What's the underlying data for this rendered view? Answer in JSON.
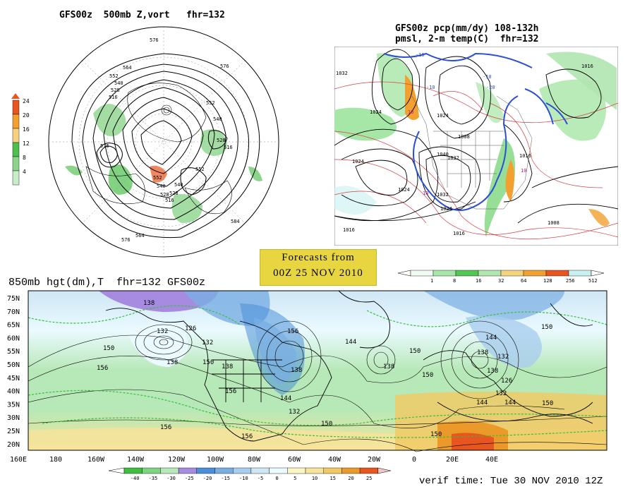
{
  "polar_map": {
    "title": "GFS00z  500mb Z,vort   fhr=132",
    "legend_values": [
      "24",
      "20",
      "16",
      "12",
      "8",
      "4"
    ],
    "legend_colors": [
      "#e8551e",
      "#f2a030",
      "#f5d27c",
      "#4cbf4c",
      "#8cd48c",
      "#c8ecc8"
    ],
    "contour_labels": [
      "576",
      "564",
      "552",
      "540",
      "528",
      "516",
      "576",
      "552",
      "540",
      "528",
      "516",
      "576",
      "584",
      "552",
      "540",
      "528",
      "516",
      "564",
      "576",
      "552",
      "540",
      "528"
    ]
  },
  "na_map": {
    "title_line1": "GFS00z pcp(mm/dy) 108-132h",
    "title_line2": "pmsl, 2-m temp(C)  fhr=132",
    "pressure_labels": [
      "1032",
      "1024",
      "1024",
      "1024",
      "1040",
      "1032",
      "1024",
      "1008",
      "1016",
      "1016",
      "1016",
      "1008",
      "1016",
      "1032",
      "1024"
    ],
    "temp_labels": [
      "-10",
      "-10",
      "10",
      "10",
      "10",
      "-10",
      "-20"
    ],
    "legend_values": [
      "1",
      "8",
      "16",
      "32",
      "64",
      "128",
      "256",
      "512"
    ],
    "legend_colors": [
      "#f0faf0",
      "#a6e6a6",
      "#52c852",
      "#b0e6b0",
      "#f5d27c",
      "#f2a030",
      "#e8551e",
      "#c8f0f0"
    ]
  },
  "forecast_box": {
    "line1": "Forecasts from",
    "line2": "00Z 25 NOV 2010"
  },
  "world_map": {
    "title": "850mb hgt(dm),T  fhr=132 GFS00z",
    "lat_labels": [
      "75N",
      "70N",
      "65N",
      "60N",
      "55N",
      "50N",
      "45N",
      "40N",
      "35N",
      "30N",
      "25N",
      "20N"
    ],
    "lon_labels": [
      "160E",
      "180",
      "160W",
      "140W",
      "120W",
      "100W",
      "80W",
      "60W",
      "40W",
      "20W",
      "0",
      "20E",
      "40E"
    ],
    "height_labels": [
      "138",
      "132",
      "126",
      "132",
      "138",
      "150",
      "156",
      "150",
      "138",
      "132",
      "144",
      "150",
      "156",
      "144",
      "138",
      "150",
      "156",
      "150",
      "156",
      "156",
      "150",
      "144",
      "138",
      "132",
      "138",
      "126",
      "150",
      "144",
      "138",
      "144",
      "150",
      "132"
    ],
    "temp_legend_values": [
      "-40",
      "-35",
      "-30",
      "-25",
      "-20",
      "-15",
      "-10",
      "-5",
      "0",
      "5",
      "10",
      "15",
      "20",
      "25"
    ],
    "temp_legend_colors": [
      "#3fbf3f",
      "#7fd47f",
      "#b7e8b7",
      "#a78be0",
      "#4a8fd9",
      "#79aee3",
      "#a9cdee",
      "#cfe6f5",
      "#eafaff",
      "#fbf7c5",
      "#f6e49a",
      "#f2c862",
      "#eb9a2a",
      "#e8551e"
    ]
  },
  "verif_time": "verif time: Tue 30 NOV 2010 12Z"
}
